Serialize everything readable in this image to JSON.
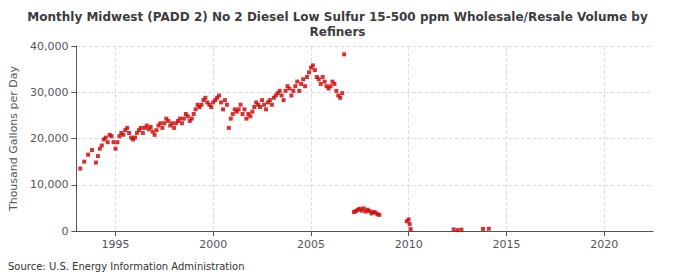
{
  "chart_data": {
    "type": "scatter",
    "title": "Monthly Midwest (PADD 2) No 2 Diesel Low Sulfur 15-500 ppm Wholesale/Resale Volume by\nRefiners",
    "ylabel": "Thousand Gallons per Day",
    "source": "Source: U.S. Energy Information Administration",
    "color": "#cc0000",
    "marker": "square",
    "grid": true,
    "xlim": [
      1993.0,
      2022.5
    ],
    "ylim": [
      0,
      40000
    ],
    "xticks": [
      1995,
      2000,
      2005,
      2010,
      2015,
      2020
    ],
    "yticks": [
      0,
      {
        "value": 10000,
        "label": "10,000"
      },
      {
        "value": 20000,
        "label": "20,000"
      },
      {
        "value": 30000,
        "label": "30,000"
      },
      {
        "value": 40000,
        "label": "40,000"
      }
    ],
    "x": [
      1993.2,
      1993.4,
      1993.6,
      1993.8,
      1994.0,
      1994.1,
      1994.2,
      1994.3,
      1994.4,
      1994.5,
      1994.6,
      1994.7,
      1994.8,
      1994.9,
      1995.0,
      1995.1,
      1995.2,
      1995.3,
      1995.4,
      1995.5,
      1995.6,
      1995.7,
      1995.8,
      1995.9,
      1996.0,
      1996.1,
      1996.2,
      1996.3,
      1996.4,
      1996.5,
      1996.6,
      1996.7,
      1996.8,
      1996.9,
      1997.0,
      1997.1,
      1997.2,
      1997.3,
      1997.4,
      1997.5,
      1997.6,
      1997.7,
      1997.8,
      1997.9,
      1998.0,
      1998.1,
      1998.2,
      1998.3,
      1998.4,
      1998.5,
      1998.6,
      1998.7,
      1998.8,
      1998.9,
      1999.0,
      1999.1,
      1999.2,
      1999.3,
      1999.4,
      1999.5,
      1999.6,
      1999.7,
      1999.8,
      1999.9,
      2000.0,
      2000.1,
      2000.2,
      2000.3,
      2000.4,
      2000.5,
      2000.6,
      2000.7,
      2000.8,
      2000.9,
      2001.0,
      2001.1,
      2001.2,
      2001.3,
      2001.4,
      2001.5,
      2001.6,
      2001.7,
      2001.8,
      2001.9,
      2002.0,
      2002.1,
      2002.2,
      2002.3,
      2002.4,
      2002.5,
      2002.6,
      2002.7,
      2002.8,
      2002.9,
      2003.0,
      2003.1,
      2003.2,
      2003.3,
      2003.4,
      2003.5,
      2003.6,
      2003.7,
      2003.8,
      2003.9,
      2004.0,
      2004.1,
      2004.2,
      2004.3,
      2004.4,
      2004.5,
      2004.6,
      2004.7,
      2004.8,
      2004.9,
      2005.0,
      2005.1,
      2005.2,
      2005.3,
      2005.4,
      2005.5,
      2005.6,
      2005.7,
      2005.8,
      2005.9,
      2006.0,
      2006.1,
      2006.2,
      2006.3,
      2006.4,
      2006.5,
      2006.6,
      2006.7,
      2007.2,
      2007.3,
      2007.4,
      2007.5,
      2007.6,
      2007.7,
      2007.8,
      2007.9,
      2008.0,
      2008.1,
      2008.2,
      2008.3,
      2008.4,
      2008.5,
      2009.9,
      2010.0,
      2010.05,
      2010.1,
      2012.3,
      2012.5,
      2012.7,
      2013.8,
      2014.1
    ],
    "values": [
      13500,
      15000,
      16500,
      17500,
      14800,
      16200,
      17800,
      18500,
      19800,
      20200,
      19200,
      20800,
      20500,
      19200,
      17800,
      19200,
      20500,
      21200,
      20800,
      21800,
      22300,
      21200,
      20200,
      19800,
      20200,
      21200,
      21800,
      22300,
      21200,
      22300,
      22800,
      22000,
      22500,
      21500,
      20800,
      21800,
      22800,
      23300,
      22300,
      23300,
      24300,
      23800,
      22800,
      23300,
      22300,
      23300,
      23800,
      24300,
      23300,
      24300,
      25300,
      24800,
      23800,
      24300,
      25300,
      26300,
      27300,
      26800,
      27300,
      28300,
      28800,
      27800,
      27300,
      26800,
      27800,
      28300,
      28800,
      29300,
      27800,
      26300,
      28300,
      27300,
      22300,
      24300,
      25300,
      26300,
      25800,
      26300,
      27300,
      25300,
      26300,
      24300,
      25300,
      24800,
      25800,
      26800,
      27800,
      27300,
      26800,
      28300,
      27300,
      26300,
      27800,
      28300,
      27300,
      28800,
      29300,
      29800,
      30300,
      29300,
      28300,
      30300,
      31300,
      30800,
      29300,
      30300,
      31300,
      32300,
      30300,
      31800,
      32800,
      31300,
      33300,
      34300,
      35300,
      35800,
      34800,
      33300,
      32800,
      31800,
      33300,
      32300,
      31300,
      30800,
      31300,
      32300,
      31800,
      30300,
      29300,
      28800,
      29800,
      38200,
      4100,
      4300,
      4600,
      4800,
      4400,
      4900,
      4200,
      4600,
      4300,
      3800,
      4100,
      4000,
      3600,
      3500,
      2100,
      2500,
      1500,
      400,
      350,
      200,
      300,
      450,
      500
    ]
  }
}
